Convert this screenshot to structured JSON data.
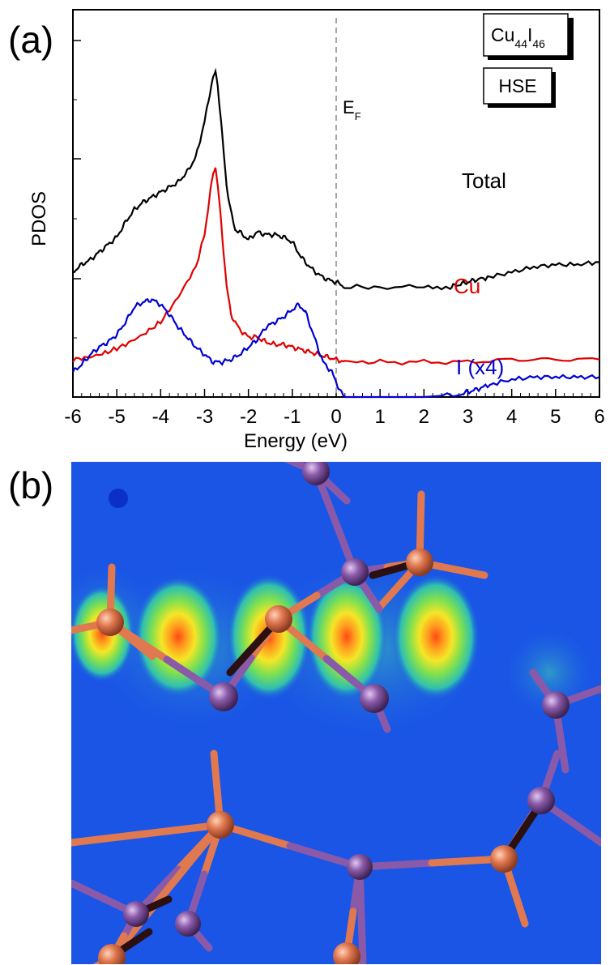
{
  "panels": {
    "a_label": "(a)",
    "b_label": "(b)"
  },
  "chart_data": {
    "type": "line",
    "xlabel": "Energy (eV)",
    "ylabel": "PDOS",
    "xlim": [
      -6,
      6
    ],
    "x_ticks": [
      "-6",
      "-5",
      "-4",
      "-3",
      "-2",
      "-1",
      "0",
      "1",
      "2",
      "3",
      "4",
      "5",
      "6"
    ],
    "y_ticks_shown": false,
    "fermi_level": {
      "x": 0,
      "label_main": "E",
      "label_sub": "F",
      "style": "dashed",
      "color": "#a6a6a6"
    },
    "legend_boxes": [
      {
        "main": "Cu",
        "sub1": "44",
        "mid": "I",
        "sub2": "46"
      },
      {
        "main": "HSE"
      }
    ],
    "series": [
      {
        "name": "Total",
        "color": "#000000",
        "x": [
          -6.0,
          -5.8,
          -5.6,
          -5.4,
          -5.2,
          -5.0,
          -4.8,
          -4.6,
          -4.4,
          -4.2,
          -4.0,
          -3.8,
          -3.6,
          -3.4,
          -3.2,
          -3.0,
          -2.9,
          -2.8,
          -2.75,
          -2.7,
          -2.6,
          -2.5,
          -2.4,
          -2.3,
          -2.2,
          -2.0,
          -1.8,
          -1.6,
          -1.4,
          -1.2,
          -1.0,
          -0.8,
          -0.6,
          -0.4,
          -0.2,
          0.0,
          0.2,
          1.0,
          2.0,
          2.6,
          2.8,
          3.0,
          3.2,
          3.5,
          4.0,
          4.5,
          5.0,
          5.5,
          6.0
        ],
        "y": [
          0.5,
          0.53,
          0.55,
          0.58,
          0.61,
          0.64,
          0.7,
          0.75,
          0.78,
          0.8,
          0.82,
          0.84,
          0.86,
          0.9,
          0.96,
          1.1,
          1.2,
          1.28,
          1.3,
          1.25,
          1.05,
          0.85,
          0.74,
          0.67,
          0.66,
          0.63,
          0.66,
          0.65,
          0.65,
          0.64,
          0.62,
          0.56,
          0.52,
          0.49,
          0.47,
          0.46,
          0.44,
          0.44,
          0.44,
          0.44,
          0.45,
          0.46,
          0.47,
          0.48,
          0.5,
          0.52,
          0.53,
          0.53,
          0.54
        ]
      },
      {
        "name": "Cu",
        "color": "#e00000",
        "x": [
          -6.0,
          -5.6,
          -5.2,
          -4.8,
          -4.4,
          -4.0,
          -3.6,
          -3.2,
          -3.0,
          -2.9,
          -2.8,
          -2.75,
          -2.7,
          -2.6,
          -2.5,
          -2.4,
          -2.2,
          -2.0,
          -1.8,
          -1.6,
          -1.4,
          -1.2,
          -1.0,
          -0.8,
          -0.6,
          -0.4,
          -0.2,
          0.0,
          0.2,
          1.0,
          2.0,
          3.0,
          4.0,
          5.0,
          6.0
        ],
        "y": [
          0.15,
          0.16,
          0.18,
          0.21,
          0.25,
          0.3,
          0.4,
          0.52,
          0.65,
          0.78,
          0.9,
          0.92,
          0.85,
          0.65,
          0.45,
          0.33,
          0.27,
          0.24,
          0.24,
          0.22,
          0.21,
          0.21,
          0.2,
          0.19,
          0.18,
          0.17,
          0.16,
          0.15,
          0.14,
          0.14,
          0.14,
          0.14,
          0.15,
          0.15,
          0.15
        ]
      },
      {
        "name": "I (x4)",
        "color": "#0000d0",
        "x": [
          -6.0,
          -5.8,
          -5.6,
          -5.4,
          -5.2,
          -5.0,
          -4.8,
          -4.6,
          -4.4,
          -4.2,
          -4.0,
          -3.8,
          -3.6,
          -3.4,
          -3.2,
          -3.0,
          -2.8,
          -2.6,
          -2.4,
          -2.2,
          -2.0,
          -1.8,
          -1.6,
          -1.4,
          -1.2,
          -1.0,
          -0.85,
          -0.7,
          -0.5,
          -0.3,
          -0.1,
          0.0,
          0.1,
          0.2,
          1.0,
          2.0,
          2.8,
          3.0,
          3.2,
          3.5,
          4.0,
          4.5,
          5.0,
          5.5,
          6.0
        ],
        "y": [
          0.1,
          0.13,
          0.17,
          0.2,
          0.22,
          0.25,
          0.3,
          0.36,
          0.38,
          0.39,
          0.37,
          0.33,
          0.28,
          0.24,
          0.2,
          0.17,
          0.14,
          0.14,
          0.15,
          0.17,
          0.2,
          0.23,
          0.28,
          0.3,
          0.32,
          0.35,
          0.37,
          0.34,
          0.24,
          0.14,
          0.1,
          0.06,
          0.02,
          0.0,
          0.0,
          0.0,
          0.01,
          0.02,
          0.03,
          0.05,
          0.07,
          0.08,
          0.08,
          0.08,
          0.08
        ]
      }
    ]
  },
  "atom_legend": {
    "cu_color": "#e07850",
    "i_color": "#8a5aa8",
    "background_color": "#1a55e6"
  }
}
